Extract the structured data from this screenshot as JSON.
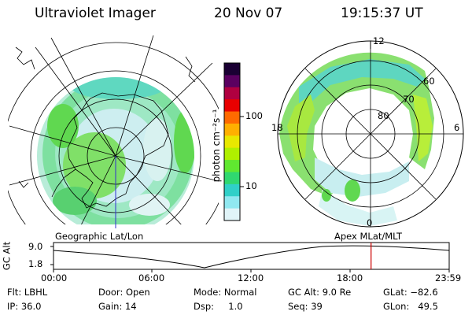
{
  "header": {
    "instrument": "Ultraviolet Imager",
    "date": "20 Nov 07",
    "time": "19:15:37 UT"
  },
  "colors": {
    "background": "#ffffff",
    "foreground": "#000000",
    "time_marker": "#cc0000"
  },
  "colorbar": {
    "label": "photon cm⁻²s⁻¹",
    "ticks": [
      "100",
      "10"
    ],
    "scale": "log",
    "colors_top_to_bottom": [
      "#1a0033",
      "#5a0060",
      "#b00040",
      "#e80000",
      "#ff6a00",
      "#ffb000",
      "#e8e800",
      "#b0f000",
      "#60e830",
      "#30d870",
      "#30d0c8",
      "#90e8f0",
      "#e0f4f8"
    ]
  },
  "left_map": {
    "label": "Geographic Lat/Lon"
  },
  "right_map": {
    "label": "Apex  MLat/MLT",
    "mlt_labels": [
      "12",
      "18",
      "6",
      "0"
    ],
    "mlat_labels": [
      "60",
      "70",
      "80"
    ]
  },
  "timeline": {
    "ylabel": "GC Alt",
    "y_ticks": [
      "9.0",
      "1.8"
    ],
    "x_ticks": [
      "00:00",
      "06:00",
      "12:00",
      "18:00",
      "23:59"
    ],
    "current_time_hours": 19.26
  },
  "footer": {
    "filter": "Flt: LBHL",
    "ip": "IP: 36.0",
    "door": "Door: Open",
    "gain": "Gain: 14",
    "mode": "Mode: Normal",
    "dsp": "Dsp:     1.0",
    "gc_alt": "GC Alt: 9.0 Re",
    "seq": "Seq: 39",
    "glat": "GLat: −82.6",
    "glon": "GLon:   49.5"
  }
}
